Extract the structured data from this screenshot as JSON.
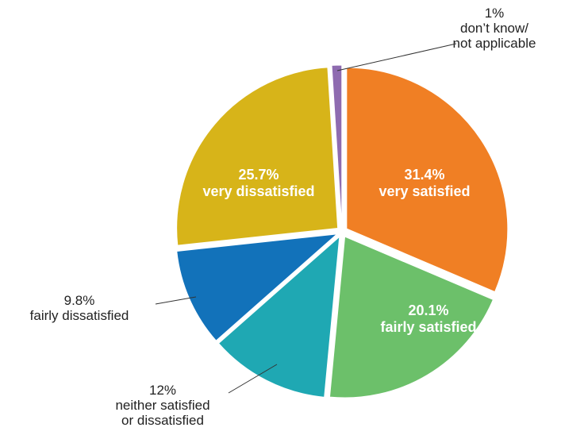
{
  "chart_data": {
    "type": "pie",
    "title": "",
    "slices": [
      {
        "id": "very-satisfied",
        "value": 31.4,
        "label_value": "31.4%",
        "label": [
          "very satisfied"
        ],
        "color": "#F07F24",
        "label_inside": true
      },
      {
        "id": "fairly-satisfied",
        "value": 20.1,
        "label_value": "20.1%",
        "label": [
          "fairly satisfied"
        ],
        "color": "#6CC06A",
        "label_inside": true
      },
      {
        "id": "neither",
        "value": 12,
        "label_value": "12%",
        "label": [
          "neither satisfied",
          "or dissatisfied"
        ],
        "color": "#1FA8B3",
        "label_inside": false
      },
      {
        "id": "fairly-dissatisfied",
        "value": 9.8,
        "label_value": "9.8%",
        "label": [
          "fairly dissatisfied"
        ],
        "color": "#1272BA",
        "label_inside": false
      },
      {
        "id": "very-dissatisfied",
        "value": 25.7,
        "label_value": "25.7%",
        "label": [
          "very dissatisfied"
        ],
        "color": "#D7B419",
        "label_inside": true
      },
      {
        "id": "dont-know",
        "value": 1,
        "label_value": "1%",
        "label": [
          "don’t know/",
          "not applicable"
        ],
        "color": "#8E6BB0",
        "label_inside": false
      }
    ],
    "start_angle_deg": 0,
    "direction": "clockwise",
    "exploded": true,
    "legend": "none"
  }
}
